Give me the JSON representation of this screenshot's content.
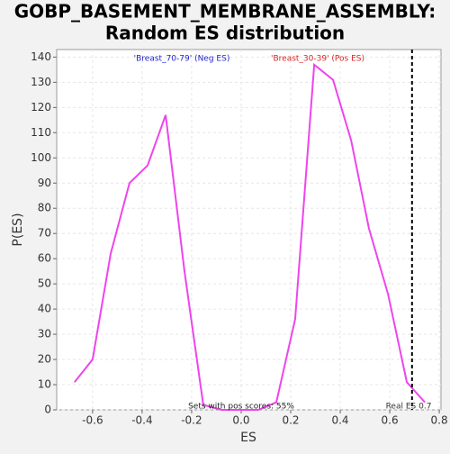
{
  "chart_data": {
    "type": "line",
    "title": "GOBP_BASEMENT_MEMBRANE_ASSEMBLY:",
    "subtitle": "Random ES distribution",
    "x_label": "ES",
    "y_label": "P(ES)",
    "xlim": [
      -0.745,
      0.807
    ],
    "ylim": [
      0,
      143
    ],
    "xticks": [
      -0.6,
      -0.4,
      -0.2,
      {
        "value": 0,
        "label": "0.0"
      },
      0.2,
      0.4,
      0.6,
      0.8
    ],
    "yticks": [
      0,
      10,
      20,
      30,
      40,
      50,
      60,
      70,
      80,
      90,
      100,
      110,
      120,
      130,
      140
    ],
    "grid": true,
    "series": [
      {
        "color": "#ee44ee",
        "x": [
          -0.673,
          -0.6,
          -0.527,
          -0.451,
          -0.378,
          -0.305,
          -0.229,
          -0.153,
          -0.08,
          -0.005,
          0.069,
          0.142,
          0.218,
          0.295,
          0.371,
          0.444,
          0.516,
          0.593,
          0.669,
          0.742
        ],
        "values": [
          11,
          20,
          62,
          90,
          97,
          117,
          55,
          2,
          0,
          0,
          0,
          3,
          36,
          137,
          131,
          107,
          72,
          46,
          11,
          3
        ]
      }
    ],
    "real_es": {
      "value": 0.69,
      "label": "Real ES 0.7"
    },
    "annotations": [
      {
        "text": "'Breast_70-79' (Neg ES)",
        "color": "#2222cc"
      },
      {
        "text": "'Breast_30-39' (Pos ES)",
        "color": "#dd2222"
      },
      {
        "text": "Sets with pos scores: 55%",
        "color": "#222222"
      }
    ]
  }
}
